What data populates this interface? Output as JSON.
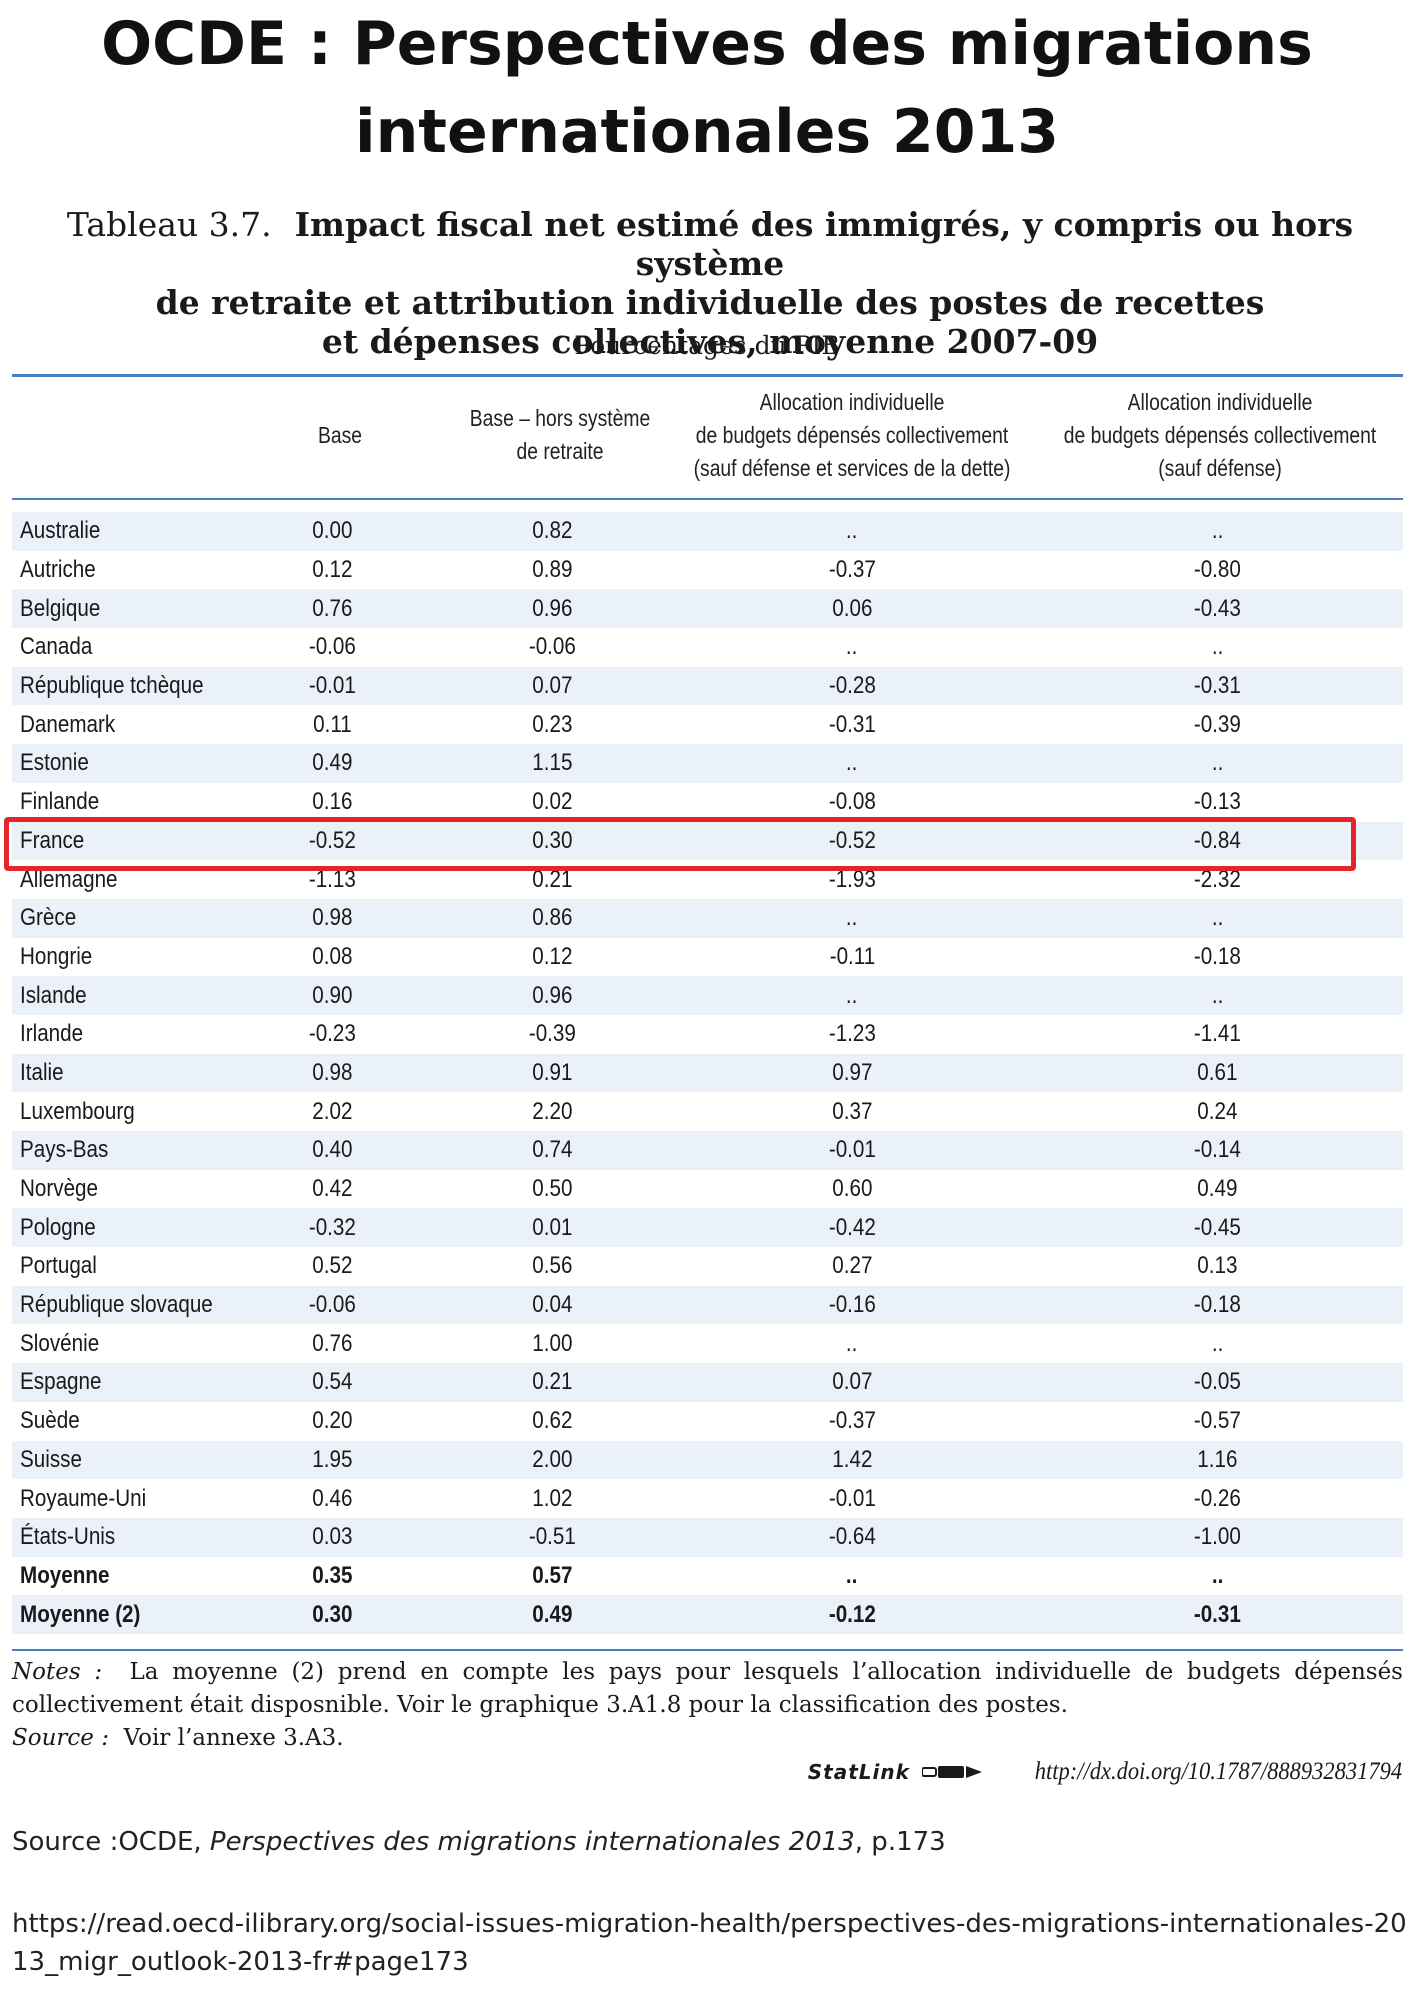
{
  "header": {
    "title_line1": "OCDE : Perspectives des migrations",
    "title_line2": "internationales 2013"
  },
  "table_heading": {
    "label": "Tableau 3.7.",
    "title_line1": "Impact fiscal net estimé des immigrés, y compris ou hors système",
    "title_line2": "de retraite et attribution individuelle des postes de recettes",
    "title_line3": "et dépenses collectives, moyenne 2007-09",
    "unit": "Pourcentages du PIB"
  },
  "columns": {
    "base": "Base",
    "hors_retraite_line1": "Base – hors système",
    "hors_retraite_line2": "de retraite",
    "alloc_dette_line1": "Allocation individuelle",
    "alloc_dette_line2": "de budgets dépensés collectivement",
    "alloc_dette_line3": "(sauf défense et services de la dette)",
    "alloc_def_line1": "Allocation individuelle",
    "alloc_def_line2": "de budgets dépensés collectivement",
    "alloc_def_line3": "(sauf défense)"
  },
  "rows": [
    {
      "country": "Australie",
      "base": "0.00",
      "hors": "0.82",
      "alloc1": "..",
      "alloc2": ".."
    },
    {
      "country": "Autriche",
      "base": "0.12",
      "hors": "0.89",
      "alloc1": "-0.37",
      "alloc2": "-0.80"
    },
    {
      "country": "Belgique",
      "base": "0.76",
      "hors": "0.96",
      "alloc1": "0.06",
      "alloc2": "-0.43"
    },
    {
      "country": "Canada",
      "base": "-0.06",
      "hors": "-0.06",
      "alloc1": "..",
      "alloc2": ".."
    },
    {
      "country": "République tchèque",
      "base": "-0.01",
      "hors": "0.07",
      "alloc1": "-0.28",
      "alloc2": "-0.31"
    },
    {
      "country": "Danemark",
      "base": "0.11",
      "hors": "0.23",
      "alloc1": "-0.31",
      "alloc2": "-0.39"
    },
    {
      "country": "Estonie",
      "base": "0.49",
      "hors": "1.15",
      "alloc1": "..",
      "alloc2": ".."
    },
    {
      "country": "Finlande",
      "base": "0.16",
      "hors": "0.02",
      "alloc1": "-0.08",
      "alloc2": "-0.13"
    },
    {
      "country": "France",
      "base": "-0.52",
      "hors": "0.30",
      "alloc1": "-0.52",
      "alloc2": "-0.84"
    },
    {
      "country": "Allemagne",
      "base": "-1.13",
      "hors": "0.21",
      "alloc1": "-1.93",
      "alloc2": "-2.32"
    },
    {
      "country": "Grèce",
      "base": "0.98",
      "hors": "0.86",
      "alloc1": "..",
      "alloc2": ".."
    },
    {
      "country": "Hongrie",
      "base": "0.08",
      "hors": "0.12",
      "alloc1": "-0.11",
      "alloc2": "-0.18"
    },
    {
      "country": "Islande",
      "base": "0.90",
      "hors": "0.96",
      "alloc1": "..",
      "alloc2": ".."
    },
    {
      "country": "Irlande",
      "base": "-0.23",
      "hors": "-0.39",
      "alloc1": "-1.23",
      "alloc2": "-1.41"
    },
    {
      "country": "Italie",
      "base": "0.98",
      "hors": "0.91",
      "alloc1": "0.97",
      "alloc2": "0.61"
    },
    {
      "country": "Luxembourg",
      "base": "2.02",
      "hors": "2.20",
      "alloc1": "0.37",
      "alloc2": "0.24"
    },
    {
      "country": "Pays-Bas",
      "base": "0.40",
      "hors": "0.74",
      "alloc1": "-0.01",
      "alloc2": "-0.14"
    },
    {
      "country": "Norvège",
      "base": "0.42",
      "hors": "0.50",
      "alloc1": "0.60",
      "alloc2": "0.49"
    },
    {
      "country": "Pologne",
      "base": "-0.32",
      "hors": "0.01",
      "alloc1": "-0.42",
      "alloc2": "-0.45"
    },
    {
      "country": "Portugal",
      "base": "0.52",
      "hors": "0.56",
      "alloc1": "0.27",
      "alloc2": "0.13"
    },
    {
      "country": "République slovaque",
      "base": "-0.06",
      "hors": "0.04",
      "alloc1": "-0.16",
      "alloc2": "-0.18"
    },
    {
      "country": "Slovénie",
      "base": "0.76",
      "hors": "1.00",
      "alloc1": "..",
      "alloc2": ".."
    },
    {
      "country": "Espagne",
      "base": "0.54",
      "hors": "0.21",
      "alloc1": "0.07",
      "alloc2": "-0.05"
    },
    {
      "country": "Suède",
      "base": "0.20",
      "hors": "0.62",
      "alloc1": "-0.37",
      "alloc2": "-0.57"
    },
    {
      "country": "Suisse",
      "base": "1.95",
      "hors": "2.00",
      "alloc1": "1.42",
      "alloc2": "1.16"
    },
    {
      "country": "Royaume-Uni",
      "base": "0.46",
      "hors": "1.02",
      "alloc1": "-0.01",
      "alloc2": "-0.26"
    },
    {
      "country": "États-Unis",
      "base": "0.03",
      "hors": "-0.51",
      "alloc1": "-0.64",
      "alloc2": "-1.00"
    },
    {
      "country": "Moyenne",
      "base": "0.35",
      "hors": "0.57",
      "alloc1": "..",
      "alloc2": "..",
      "bold": true
    },
    {
      "country": "Moyenne (2)",
      "base": "0.30",
      "hors": "0.49",
      "alloc1": "-0.12",
      "alloc2": "-0.31",
      "bold": true
    }
  ],
  "highlight_color": "#e3262a",
  "notes": {
    "notes_label": "Notes :",
    "notes_text": "La moyenne (2) prend en compte les pays pour lesquels l’allocation individuelle de budgets dépensés collectivement était disposnible. Voir le graphique 3.A1.8 pour la classification des postes.",
    "source_label": "Source :",
    "source_text": "Voir l’annexe 3.A3."
  },
  "statlink": {
    "brand": "StatLink",
    "url": "http://dx.doi.org/10.1787/888932831794"
  },
  "footer": {
    "source_prefix": "Source :OCDE, ",
    "source_work": "Perspectives des migrations internationales 2013",
    "source_suffix": ", p.173",
    "url": "https://read.oecd-ilibrary.org/social-issues-migration-health/perspectives-des-migrations-internationales-2013_migr_outlook-2013-fr#page173"
  }
}
